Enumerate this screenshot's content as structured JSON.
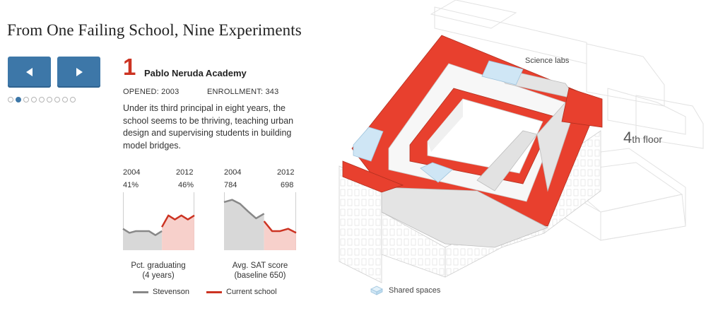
{
  "title": "From One Failing School, Nine Experiments",
  "nav": {
    "prev_icon": "triangle-left-icon",
    "next_icon": "triangle-right-icon"
  },
  "pagination": {
    "total": 9,
    "active_index": 1
  },
  "school": {
    "number": "1",
    "name": "Pablo Neruda Academy",
    "opened": "OPENED: 2003",
    "enrollment": "ENROLLMENT: 343",
    "description": "Under its third principal in eight years, the school seems to be thriving, teaching urban design and supervising students in building model bridges."
  },
  "charts": {
    "graduation": {
      "start_year": "2004",
      "end_year": "2012",
      "start_value": "41%",
      "end_value": "46%",
      "caption_line1": "Pct. graduating",
      "caption_line2": "(4 years)",
      "stevenson": [
        0.63,
        0.7,
        0.67,
        0.67,
        0.67,
        0.74,
        0.67
      ],
      "current": [
        0.6,
        0.4,
        0.47,
        0.4,
        0.47,
        0.4
      ]
    },
    "sat": {
      "start_year": "2004",
      "end_year": "2012",
      "start_value": "784",
      "end_value": "698",
      "caption_line1": "Avg. SAT score",
      "caption_line2": "(baseline 650)",
      "stevenson": [
        0.17,
        0.13,
        0.2,
        0.33,
        0.45,
        0.37
      ],
      "current": [
        0.5,
        0.67,
        0.67,
        0.63,
        0.7
      ]
    }
  },
  "legend": {
    "stevenson": "Stevenson",
    "current": "Current school",
    "stevenson_color": "#888888",
    "current_color": "#cc3322"
  },
  "building": {
    "floor_number": "4",
    "floor_suffix": "th floor",
    "science_labs": "Science labs",
    "shared_spaces": "Shared spaces",
    "school_color": "#e8402e",
    "shared_color": "#cfe6f5"
  }
}
